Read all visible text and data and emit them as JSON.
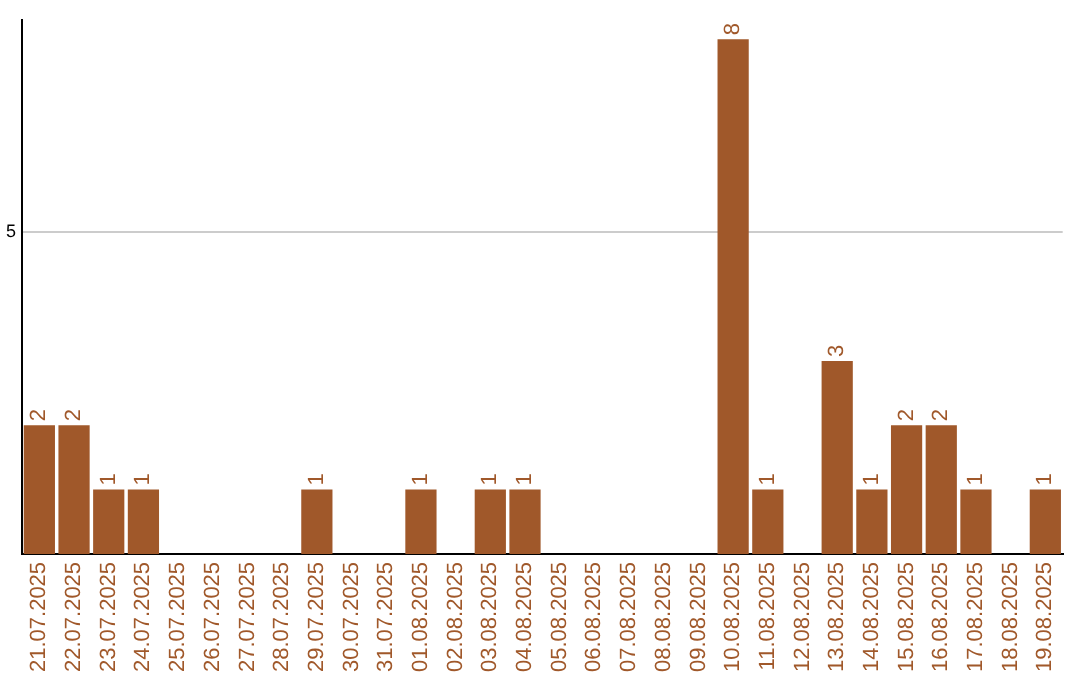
{
  "chart_data": {
    "type": "bar",
    "categories": [
      "21.07.2025",
      "22.07.2025",
      "23.07.2025",
      "24.07.2025",
      "25.07.2025",
      "26.07.2025",
      "27.07.2025",
      "28.07.2025",
      "29.07.2025",
      "30.07.2025",
      "31.07.2025",
      "01.08.2025",
      "02.08.2025",
      "03.08.2025",
      "04.08.2025",
      "05.08.2025",
      "06.08.2025",
      "07.08.2025",
      "08.08.2025",
      "09.08.2025",
      "10.08.2025",
      "11.08.2025",
      "12.08.2025",
      "13.08.2025",
      "14.08.2025",
      "15.08.2025",
      "16.08.2025",
      "17.08.2025",
      "18.08.2025",
      "19.08.2025"
    ],
    "values": [
      2,
      2,
      1,
      1,
      0,
      0,
      0,
      0,
      1,
      0,
      0,
      1,
      0,
      1,
      1,
      0,
      0,
      0,
      0,
      0,
      8,
      1,
      0,
      3,
      1,
      2,
      2,
      1,
      0,
      1
    ],
    "value_labels": [
      "2",
      "2",
      "1",
      "1",
      null,
      null,
      null,
      null,
      "1",
      null,
      null,
      "1",
      null,
      "1",
      "1",
      null,
      null,
      null,
      null,
      null,
      "8",
      "1",
      null,
      "3",
      "1",
      "2",
      "2",
      "1",
      null,
      "1"
    ],
    "color": "#a0582a",
    "ylim": [
      0,
      8.3
    ],
    "yticks": [
      5
    ],
    "grid": "y",
    "legend": false
  }
}
